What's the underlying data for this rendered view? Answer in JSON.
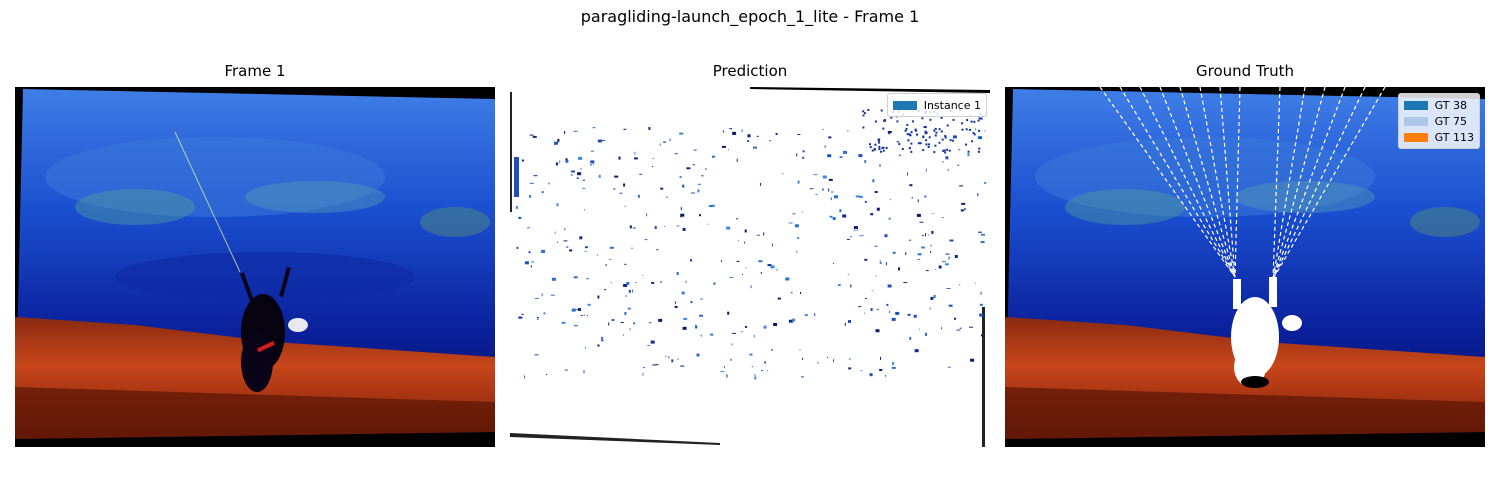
{
  "figure": {
    "title": "paragliding-launch_epoch_1_lite - Frame 1"
  },
  "panels": [
    {
      "title": "Frame 1"
    },
    {
      "title": "Prediction"
    },
    {
      "title": "Ground Truth"
    }
  ],
  "prediction_legend": [
    {
      "label": "Instance 1",
      "color": "#1f77b4"
    }
  ],
  "ground_truth_legend": [
    {
      "label": "GT 38",
      "color": "#1f77b4"
    },
    {
      "label": "GT 75",
      "color": "#aec7e8"
    },
    {
      "label": "GT 113",
      "color": "#ff7f0e"
    }
  ]
}
